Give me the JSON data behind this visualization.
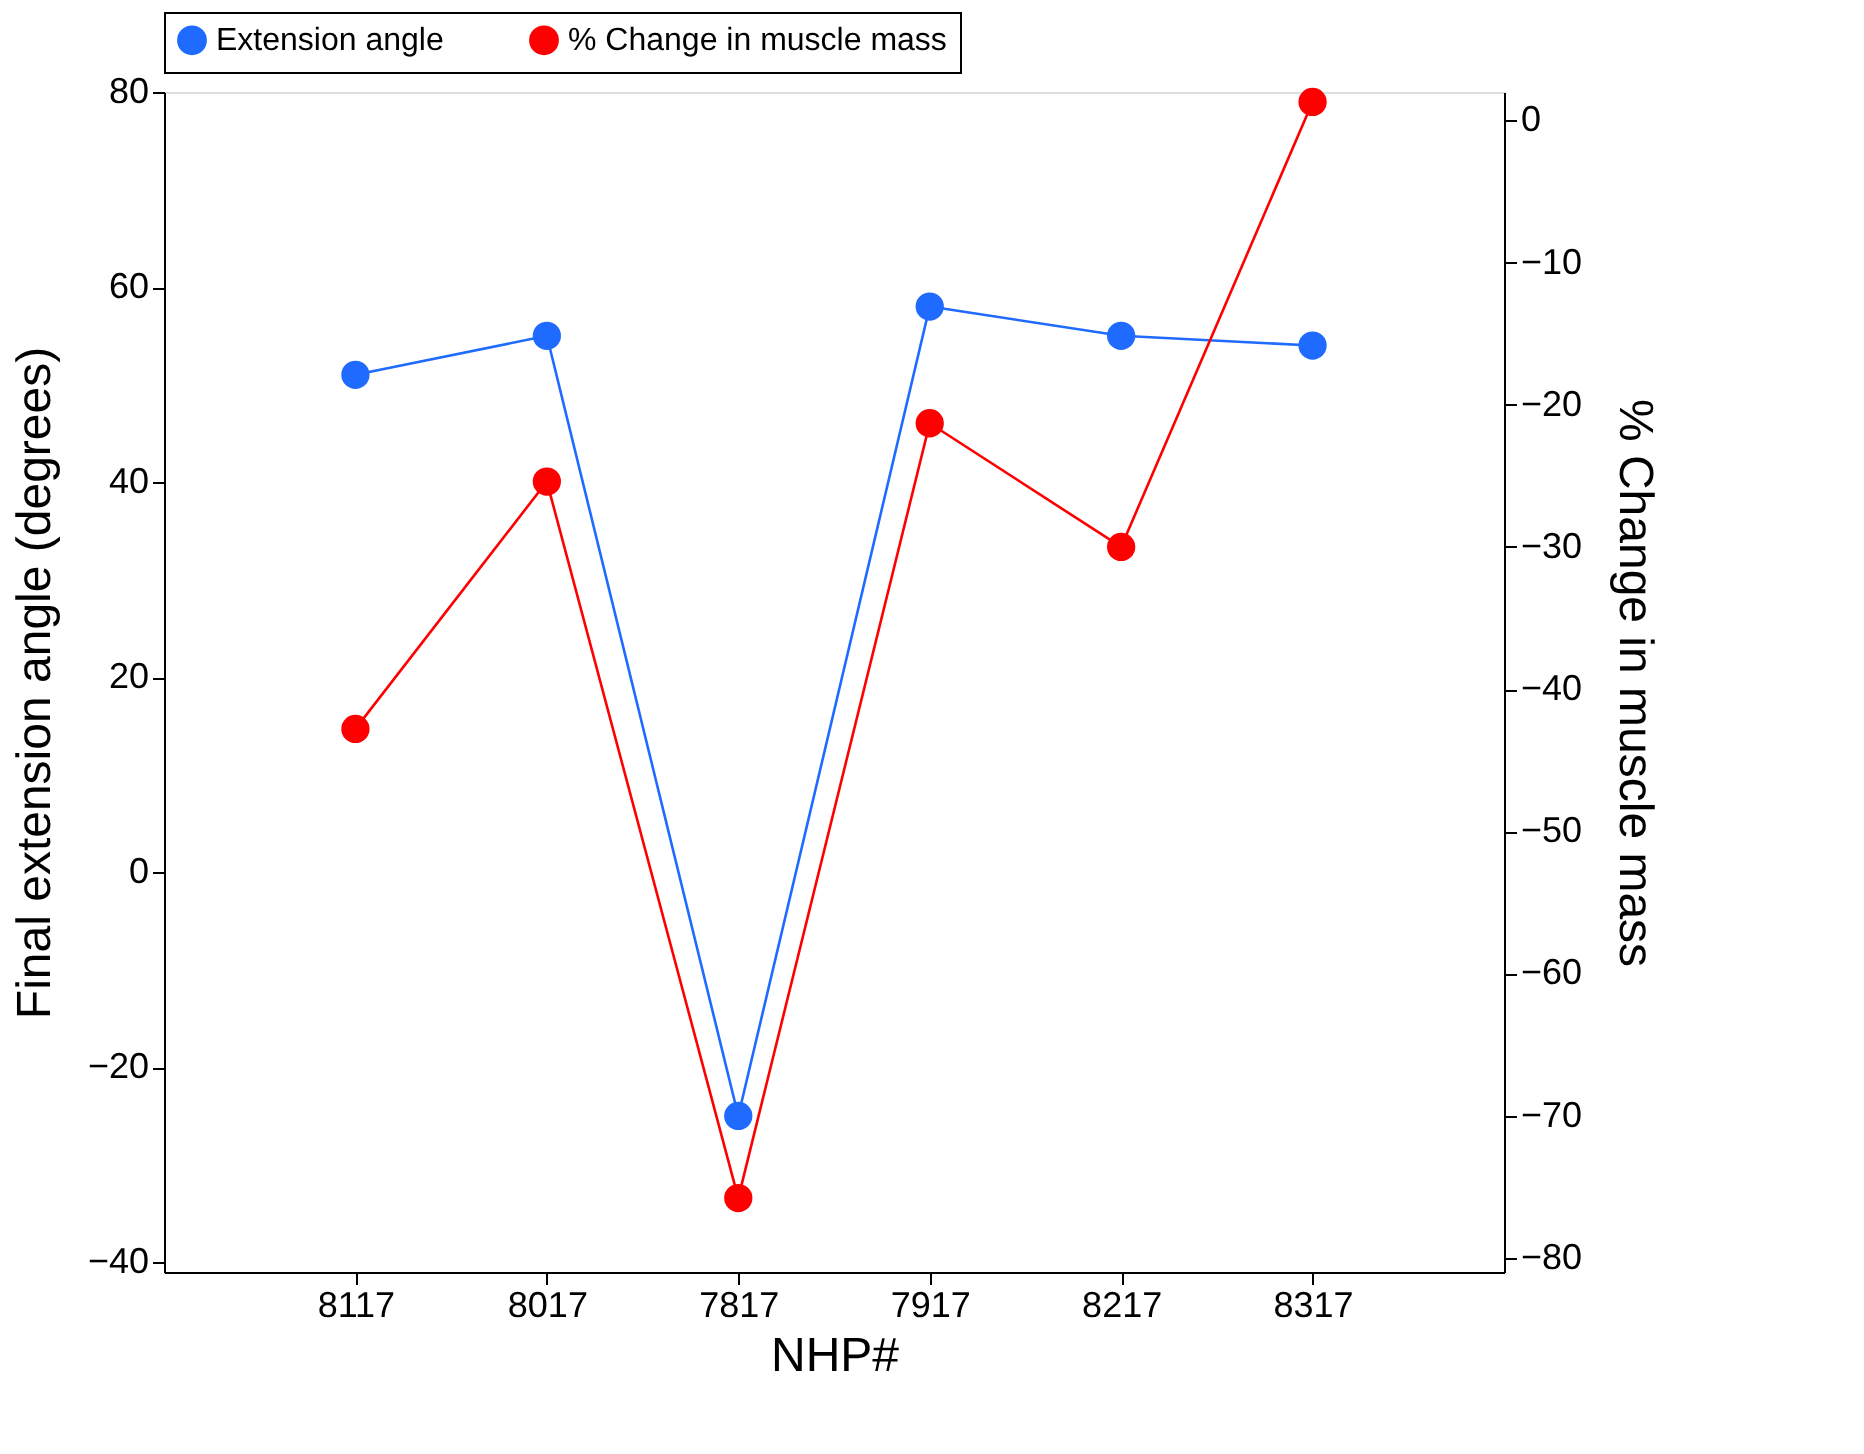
{
  "chart_data": {
    "type": "line",
    "xlabel": "NHP#",
    "ylabel": "Final extension angle (degrees)",
    "y2label": "% Change in muscle mass",
    "categories": [
      "8117",
      "8017",
      "7817",
      "7917",
      "8217",
      "8317"
    ],
    "series": [
      {
        "name": "Extension angle",
        "color": "#1f6bff",
        "values": [
          51,
          55,
          -25,
          58,
          55,
          54
        ]
      },
      {
        "name": "% Change in muscle mass",
        "color": "#ff0000",
        "axis": "y2",
        "values": [
          -42.8,
          -25.4,
          -75.8,
          -21.3,
          -30,
          1.3
        ]
      }
    ],
    "ylim": [
      -41,
      80
    ],
    "yticks": [
      -40,
      -20,
      0,
      20,
      40,
      60,
      80
    ],
    "y2lim": [
      -81,
      2
    ],
    "y2ticks": [
      -80,
      -70,
      -60,
      -50,
      -40,
      -30,
      -20,
      -10,
      0
    ],
    "grid": false,
    "legend": "top",
    "marker": "circle",
    "line_style": "solid"
  }
}
